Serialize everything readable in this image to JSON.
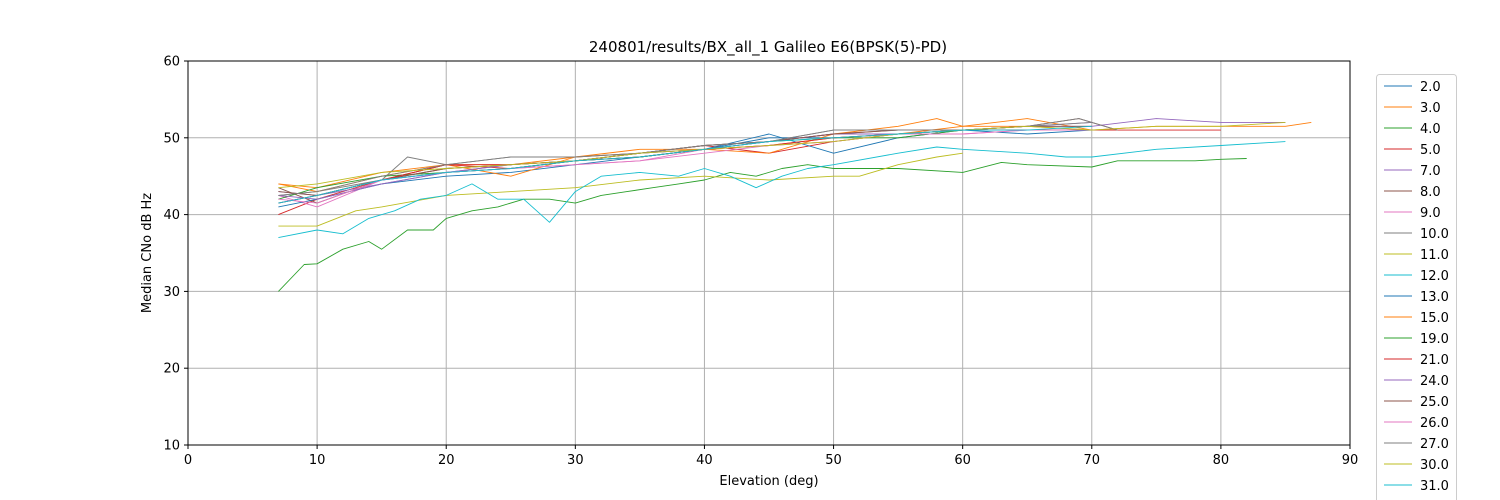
{
  "chart_data": {
    "type": "line",
    "title": "240801/results/BX_all_1 Galileo E6(BPSK(5)-PD)",
    "xlabel": "Elevation (deg)",
    "ylabel": "Median CNo dB Hz",
    "xlim": [
      0,
      90
    ],
    "ylim": [
      10,
      60
    ],
    "xticks": [
      "0",
      "10",
      "20",
      "30",
      "40",
      "50",
      "60",
      "70",
      "80",
      "90"
    ],
    "yticks": [
      "10",
      "20",
      "30",
      "40",
      "50",
      "60"
    ],
    "grid": true,
    "legend_position": "right, outside plot",
    "series": [
      {
        "name": "2.0",
        "color": "#1f77b4",
        "x": [
          7,
          10,
          15,
          20,
          25,
          30,
          35,
          40,
          45,
          50,
          55,
          60,
          65,
          70
        ],
        "values": [
          41.5,
          42.5,
          44.5,
          45.5,
          46,
          47,
          47.5,
          48.5,
          50,
          50,
          50.5,
          51,
          51,
          51
        ]
      },
      {
        "name": "3.0",
        "color": "#ff7f0e",
        "x": [
          7,
          10,
          15,
          20,
          25,
          30,
          35,
          40,
          45,
          50,
          55,
          60,
          65,
          70,
          75,
          80,
          85,
          87
        ],
        "values": [
          44,
          43.5,
          45.5,
          46.5,
          46.5,
          47.5,
          48,
          48.5,
          49,
          50,
          50.5,
          51.5,
          52.5,
          51,
          51.5,
          51.5,
          51.5,
          52
        ]
      },
      {
        "name": "4.0",
        "color": "#2ca02c",
        "x": [
          7,
          9,
          10,
          12,
          14,
          15,
          17,
          19,
          20,
          22,
          24,
          26,
          28,
          30,
          32,
          34,
          36,
          38,
          40,
          42,
          44,
          46,
          48,
          50,
          55,
          60,
          63,
          65,
          70,
          72,
          75,
          78,
          80,
          82
        ],
        "values": [
          30,
          33.5,
          33.6,
          35.5,
          36.5,
          35.5,
          38,
          38,
          39.5,
          40.5,
          41,
          42,
          42,
          41.5,
          42.5,
          43,
          43.5,
          44,
          44.5,
          45.5,
          45,
          46,
          46.5,
          46,
          46,
          45.5,
          46.8,
          46.5,
          46.2,
          47,
          47,
          47,
          47.2,
          47.3
        ]
      },
      {
        "name": "5.0",
        "color": "#d62728",
        "x": [
          7,
          10,
          15,
          20,
          25,
          30,
          35,
          40,
          45,
          50,
          55,
          60,
          65,
          70,
          75,
          80
        ],
        "values": [
          40,
          42,
          44.5,
          46.5,
          46.5,
          47,
          48,
          49,
          48,
          49.5,
          50.5,
          51,
          51,
          51,
          51,
          51
        ]
      },
      {
        "name": "7.0",
        "color": "#9467bd",
        "x": [
          7,
          10,
          15,
          20,
          25,
          30,
          35,
          40,
          45,
          50,
          55,
          60,
          65,
          70,
          75,
          80,
          85
        ],
        "values": [
          43,
          42.5,
          44,
          45.5,
          46.5,
          47,
          48,
          48.5,
          49.5,
          50.5,
          50.5,
          51,
          51.5,
          51.5,
          52.5,
          52,
          52
        ]
      },
      {
        "name": "8.0",
        "color": "#8c564b",
        "x": [
          7,
          10,
          15,
          20,
          25,
          30,
          35,
          40,
          45,
          50,
          55,
          60,
          65,
          69,
          72
        ],
        "values": [
          43.5,
          41.5,
          44.5,
          46,
          46.5,
          47,
          48,
          49,
          49.5,
          50.5,
          51,
          51,
          51.5,
          52.5,
          51
        ]
      },
      {
        "name": "9.0",
        "color": "#e377c2",
        "x": [
          7,
          10,
          15,
          20,
          25,
          30,
          35,
          40,
          45,
          50,
          55,
          60,
          65,
          70
        ],
        "values": [
          42.5,
          41,
          44.5,
          45.5,
          46,
          46.5,
          47,
          48.5,
          49,
          49.5,
          50.5,
          50.5,
          51,
          51
        ]
      },
      {
        "name": "10.0",
        "color": "#7f7f7f",
        "x": [
          7,
          10,
          15,
          17,
          20,
          25,
          30,
          35,
          40,
          45,
          50,
          55,
          60,
          65,
          69,
          72
        ],
        "values": [
          42.5,
          43,
          44.5,
          47.5,
          46.5,
          47.5,
          47.5,
          48,
          49,
          49.5,
          51,
          51,
          51,
          51.5,
          52.5,
          51
        ]
      },
      {
        "name": "11.0",
        "color": "#bcbd22",
        "x": [
          7,
          10,
          13,
          15,
          20,
          25,
          30,
          35,
          40,
          45,
          50,
          52,
          55,
          58,
          60
        ],
        "values": [
          38.5,
          38.5,
          40.5,
          41,
          42.5,
          43,
          43.5,
          44.5,
          45,
          44.5,
          45,
          45,
          46.5,
          47.5,
          48
        ]
      },
      {
        "name": "12.0",
        "color": "#17becf",
        "x": [
          7,
          10,
          12,
          14,
          16,
          18,
          20,
          22,
          24,
          26,
          28,
          30,
          32,
          35,
          38,
          40,
          42,
          44,
          46,
          48,
          50,
          55,
          58,
          60,
          65,
          68,
          70,
          75,
          80,
          85
        ],
        "values": [
          37,
          38,
          37.5,
          39.5,
          40.5,
          42,
          42.5,
          44,
          42,
          42,
          39,
          43,
          45,
          45.5,
          45,
          46,
          45,
          43.5,
          45,
          46,
          46.5,
          48,
          48.8,
          48.5,
          48,
          47.5,
          47.5,
          48.5,
          49,
          49.5
        ]
      },
      {
        "name": "13.0",
        "color": "#1f77b4",
        "x": [
          7,
          10,
          15,
          20,
          25,
          30,
          35,
          40,
          45,
          50,
          55,
          60,
          65,
          70
        ],
        "values": [
          41,
          42,
          44,
          45,
          45.5,
          46.5,
          47.5,
          48.5,
          50.5,
          48,
          50,
          51,
          50.5,
          51
        ]
      },
      {
        "name": "15.0",
        "color": "#ff7f0e",
        "x": [
          7,
          10,
          15,
          20,
          25,
          30,
          35,
          40,
          45,
          50,
          55,
          58,
          60,
          65,
          70
        ],
        "values": [
          44,
          43,
          45,
          46.5,
          45,
          47.5,
          48.5,
          48.5,
          48,
          50.5,
          51.5,
          52.5,
          51.5,
          51.5,
          51
        ]
      },
      {
        "name": "19.0",
        "color": "#2ca02c",
        "x": [
          7,
          10,
          15,
          20,
          25,
          30,
          35,
          40,
          45,
          50,
          55,
          60,
          65,
          70
        ],
        "values": [
          42,
          43.5,
          45,
          45.5,
          46,
          47,
          47.5,
          48.5,
          49.5,
          50,
          50,
          51,
          51,
          51
        ]
      },
      {
        "name": "21.0",
        "color": "#d62728",
        "x": [
          7,
          10,
          15,
          20,
          25,
          30,
          35,
          40,
          45,
          50,
          55,
          60,
          65,
          70
        ],
        "values": [
          41.5,
          42.5,
          44.5,
          46.5,
          46,
          47,
          47.5,
          48.5,
          49,
          50,
          50.5,
          51,
          51,
          51
        ]
      },
      {
        "name": "24.0",
        "color": "#9467bd",
        "x": [
          7,
          10,
          15,
          20,
          25,
          30,
          35,
          40,
          45,
          50,
          55,
          60,
          65,
          70
        ],
        "values": [
          42.5,
          42,
          44,
          45.5,
          46.5,
          47,
          48,
          48.5,
          49.5,
          50.5,
          50.5,
          51,
          51.5,
          52
        ]
      },
      {
        "name": "25.0",
        "color": "#8c564b",
        "x": [
          7,
          10,
          15,
          20,
          25,
          30,
          35,
          40,
          45,
          50,
          55,
          60,
          65,
          70
        ],
        "values": [
          43,
          42.5,
          44.5,
          46,
          46.5,
          47,
          48,
          49,
          49.5,
          50.5,
          51,
          51,
          51.5,
          51.5
        ]
      },
      {
        "name": "26.0",
        "color": "#e377c2",
        "x": [
          7,
          10,
          15,
          20,
          25,
          30,
          35,
          40,
          45,
          50,
          55,
          60,
          65,
          70
        ],
        "values": [
          42,
          41.5,
          44.5,
          45.5,
          46,
          46.5,
          47,
          48,
          49,
          49.5,
          50.5,
          50.5,
          51,
          51
        ]
      },
      {
        "name": "27.0",
        "color": "#7f7f7f",
        "x": [
          7,
          10,
          15,
          20,
          25,
          30,
          35,
          40,
          45,
          50,
          55,
          60,
          65,
          70
        ],
        "values": [
          42.5,
          43,
          45,
          46.5,
          47.5,
          47.5,
          48,
          49,
          49.5,
          51,
          51,
          51,
          51.5,
          52
        ]
      },
      {
        "name": "30.0",
        "color": "#bcbd22",
        "x": [
          7,
          10,
          15,
          20,
          25,
          30,
          35,
          40,
          45,
          50,
          55,
          60,
          65,
          70,
          75,
          80,
          85
        ],
        "values": [
          43.5,
          44,
          45.5,
          46,
          46.5,
          47,
          48,
          48.5,
          49,
          49.5,
          50.5,
          51,
          51.5,
          51,
          51.5,
          51.5,
          52
        ]
      },
      {
        "name": "31.0",
        "color": "#17becf",
        "x": [
          7,
          10,
          15,
          20,
          25,
          30,
          35,
          40,
          45,
          50,
          55,
          60,
          65,
          70
        ],
        "values": [
          41.5,
          42.5,
          44.5,
          45.5,
          46,
          47,
          47.5,
          48.5,
          49.5,
          50,
          50.5,
          51,
          51,
          51.5
        ]
      }
    ]
  }
}
